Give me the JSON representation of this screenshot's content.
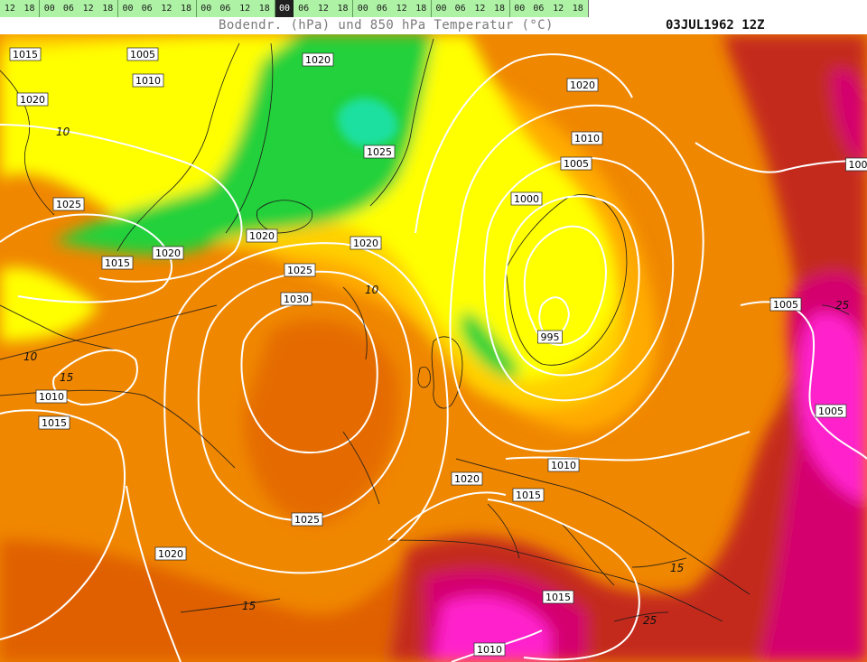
{
  "timebar": {
    "hours": [
      "12",
      "18",
      "00",
      "06",
      "12",
      "18",
      "00",
      "06",
      "12",
      "18",
      "00",
      "06",
      "12",
      "18",
      "00",
      "06",
      "12",
      "18",
      "00",
      "06",
      "12",
      "18",
      "00",
      "06",
      "12",
      "18",
      "00",
      "06",
      "12",
      "18"
    ],
    "selected_index": 14
  },
  "title": "Bodendr. (hPa) und 850 hPa Temperatur (°C)",
  "datestamp": "03JUL1962 12Z",
  "map": {
    "temperature_colors": {
      "cold_5": "#1fe0a0",
      "cold_0": "#24d13a",
      "t5": "#ffff00",
      "t10": "#ffd000",
      "t12": "#ffab00",
      "t15": "#f08700",
      "t17": "#e06000",
      "t20": "#c42a1a",
      "t25": "#d4006e",
      "t30": "#ff22cc"
    },
    "isobar_labels": [
      {
        "id": "p1",
        "text": "1015"
      },
      {
        "id": "p2",
        "text": "1005"
      },
      {
        "id": "p3",
        "text": "1010"
      },
      {
        "id": "p4",
        "text": "1020"
      },
      {
        "id": "p5",
        "text": "1020"
      },
      {
        "id": "p6",
        "text": "1020"
      },
      {
        "id": "p7",
        "text": "1025"
      },
      {
        "id": "p8",
        "text": "1010"
      },
      {
        "id": "p9",
        "text": "1005"
      },
      {
        "id": "p10",
        "text": "1000"
      },
      {
        "id": "p11",
        "text": "1025"
      },
      {
        "id": "p12",
        "text": "1020"
      },
      {
        "id": "p13",
        "text": "1015"
      },
      {
        "id": "p14",
        "text": "1020"
      },
      {
        "id": "p15",
        "text": "1020"
      },
      {
        "id": "p16",
        "text": "1025"
      },
      {
        "id": "p17",
        "text": "1030"
      },
      {
        "id": "p18",
        "text": "995"
      },
      {
        "id": "p19",
        "text": "1005"
      },
      {
        "id": "p20",
        "text": "1010"
      },
      {
        "id": "p21",
        "text": "1015"
      },
      {
        "id": "p22",
        "text": "1005"
      },
      {
        "id": "p23",
        "text": "1010"
      },
      {
        "id": "p24",
        "text": "1020"
      },
      {
        "id": "p25",
        "text": "1015"
      },
      {
        "id": "p26",
        "text": "1025"
      },
      {
        "id": "p27",
        "text": "1020"
      },
      {
        "id": "p28",
        "text": "1015"
      },
      {
        "id": "p29",
        "text": "1010"
      },
      {
        "id": "p30",
        "text": "100"
      }
    ],
    "temperature_labels": [
      {
        "id": "t1",
        "text": "10"
      },
      {
        "id": "t2",
        "text": "10"
      },
      {
        "id": "t3",
        "text": "10"
      },
      {
        "id": "t4",
        "text": "15"
      },
      {
        "id": "t5",
        "text": "15"
      },
      {
        "id": "t6",
        "text": "15"
      },
      {
        "id": "t7",
        "text": "25"
      },
      {
        "id": "t8",
        "text": "25"
      }
    ]
  }
}
